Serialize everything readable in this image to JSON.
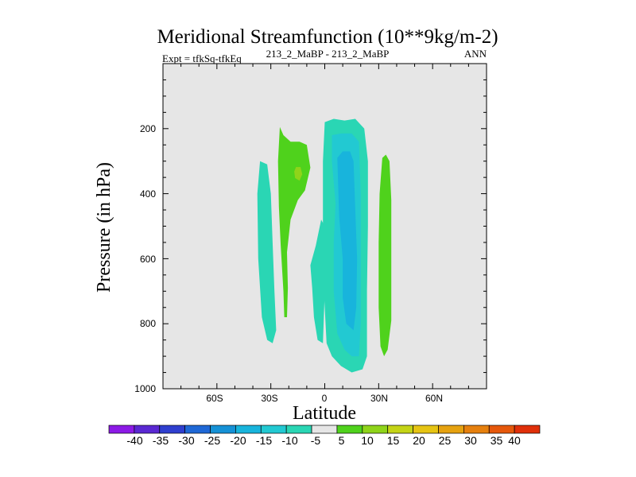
{
  "chart_data": {
    "type": "contour",
    "title": "Meridional Streamfunction (10**9kg/m-2)",
    "subtitle_left": "Expt = tfkSq-tfkEq",
    "subtitle_center": "213_2_MaBP - 213_2_MaBP",
    "subtitle_right": "ANN",
    "xlabel": "Latitude",
    "ylabel": "Pressure (in hPa)",
    "x_ticks": [
      "60S",
      "30S",
      "0",
      "30N",
      "60N"
    ],
    "x_tick_values": [
      -60,
      -30,
      0,
      30,
      60
    ],
    "xlim": [
      -90,
      90
    ],
    "y_ticks": [
      "200",
      "400",
      "600",
      "800",
      "1000"
    ],
    "y_tick_values": [
      200,
      400,
      600,
      800,
      1000
    ],
    "ylim": [
      0,
      1000
    ],
    "background_color": "#e6e6e6",
    "colorbar": {
      "labels": [
        "-40",
        "-35",
        "-30",
        "-25",
        "-20",
        "-15",
        "-10",
        "-5",
        "5",
        "10",
        "15",
        "20",
        "25",
        "30",
        "35",
        "40"
      ],
      "colors": [
        "#8c1ae6",
        "#5a28d2",
        "#2f3fcf",
        "#1f68d6",
        "#1591d6",
        "#18b4dc",
        "#22c9d2",
        "#2ad6b4",
        "#e6e6e6",
        "#4fd21c",
        "#8fd41a",
        "#c4d416",
        "#e6c413",
        "#e6a210",
        "#e6800e",
        "#e6580b",
        "#e0300a"
      ]
    },
    "regions": [
      {
        "name": "sh-narrow-neg-cell",
        "level": "-5",
        "color": "#2ad6b4",
        "points": [
          [
            -36,
            300
          ],
          [
            -32,
            310
          ],
          [
            -30,
            400
          ],
          [
            -29,
            550
          ],
          [
            -28,
            700
          ],
          [
            -27,
            820
          ],
          [
            -29,
            860
          ],
          [
            -32,
            850
          ],
          [
            -35,
            780
          ],
          [
            -37,
            600
          ],
          [
            -37.5,
            400
          ]
        ]
      },
      {
        "name": "sh-pos-cell",
        "level": "5",
        "color": "#4fd21c",
        "points": [
          [
            -25,
            195
          ],
          [
            -23,
            220
          ],
          [
            -19,
            240
          ],
          [
            -14,
            240
          ],
          [
            -10,
            250
          ],
          [
            -8,
            320
          ],
          [
            -11,
            390
          ],
          [
            -15,
            420
          ],
          [
            -19,
            480
          ],
          [
            -21,
            580
          ],
          [
            -20.5,
            690
          ],
          [
            -21,
            780
          ],
          [
            -22.5,
            780
          ],
          [
            -23,
            700
          ],
          [
            -24.5,
            560
          ],
          [
            -25.5,
            440
          ],
          [
            -26,
            300
          ]
        ]
      },
      {
        "name": "sh-pos-cell-core",
        "level": "10",
        "color": "#8fd41a",
        "points": [
          [
            -16,
            318
          ],
          [
            -13.5,
            318
          ],
          [
            -12.5,
            340
          ],
          [
            -14,
            360
          ],
          [
            -16.5,
            352
          ],
          [
            -17,
            332
          ]
        ]
      },
      {
        "name": "eq-neg-lobe",
        "level": "-5",
        "color": "#2ad6b4",
        "points": [
          [
            -2,
            480
          ],
          [
            -5,
            560
          ],
          [
            -8,
            620
          ],
          [
            -7,
            690
          ],
          [
            -6,
            780
          ],
          [
            -4,
            850
          ],
          [
            -1,
            860
          ],
          [
            0,
            700
          ],
          [
            0,
            500
          ]
        ]
      },
      {
        "name": "eq-neg-cell",
        "level": "-5",
        "color": "#2ad6b4",
        "points": [
          [
            0,
            180
          ],
          [
            5,
            170
          ],
          [
            11,
            175
          ],
          [
            17,
            170
          ],
          [
            22,
            200
          ],
          [
            24,
            300
          ],
          [
            24,
            500
          ],
          [
            23.5,
            700
          ],
          [
            23.5,
            900
          ],
          [
            21,
            940
          ],
          [
            15,
            950
          ],
          [
            9,
            930
          ],
          [
            4,
            900
          ],
          [
            1,
            860
          ],
          [
            -0.5,
            700
          ],
          [
            -1,
            500
          ],
          [
            -1,
            300
          ]
        ]
      },
      {
        "name": "eq-neg-inner",
        "level": "-10",
        "color": "#22c9d2",
        "points": [
          [
            4,
            220
          ],
          [
            9,
            215
          ],
          [
            15,
            215
          ],
          [
            19,
            240
          ],
          [
            20,
            400
          ],
          [
            20,
            600
          ],
          [
            20,
            800
          ],
          [
            19,
            900
          ],
          [
            15,
            900
          ],
          [
            11,
            880
          ],
          [
            7,
            830
          ],
          [
            5,
            700
          ],
          [
            5,
            550
          ],
          [
            6,
            430
          ],
          [
            4,
            300
          ]
        ]
      },
      {
        "name": "eq-neg-core",
        "level": "-15",
        "color": "#18b4dc",
        "points": [
          [
            7,
            290
          ],
          [
            10,
            270
          ],
          [
            14,
            270
          ],
          [
            16,
            300
          ],
          [
            17,
            450
          ],
          [
            18,
            600
          ],
          [
            17.5,
            750
          ],
          [
            16,
            820
          ],
          [
            12,
            800
          ],
          [
            10,
            720
          ],
          [
            10,
            600
          ],
          [
            8,
            470
          ]
        ]
      },
      {
        "name": "nh-pos-cell",
        "level": "5",
        "color": "#4fd21c",
        "points": [
          [
            32,
            290
          ],
          [
            34,
            280
          ],
          [
            36,
            300
          ],
          [
            37,
            420
          ],
          [
            37,
            620
          ],
          [
            37,
            790
          ],
          [
            35,
            880
          ],
          [
            33,
            900
          ],
          [
            31,
            870
          ],
          [
            30,
            750
          ],
          [
            30,
            550
          ],
          [
            30.5,
            400
          ]
        ]
      }
    ]
  }
}
